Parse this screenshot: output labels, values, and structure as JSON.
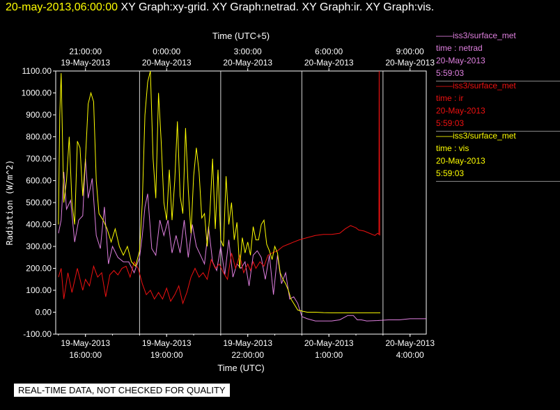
{
  "header": {
    "timestamp": "20-may-2013,06:00:00",
    "graphs": "XY Graph:xy-grid.  XY Graph:netrad.  XY Graph:ir.  XY Graph:vis."
  },
  "legend": [
    {
      "title": "——iss3/surface_met",
      "var": "time : netrad",
      "date": "20-May-2013",
      "time": "5:59:03",
      "color": "#e080e0"
    },
    {
      "title": "——iss3/surface_met",
      "var": "time : ir",
      "date": "20-May-2013",
      "time": "5:59:03",
      "color": "#ee1111"
    },
    {
      "title": "——iss3/surface_met",
      "var": "time : vis",
      "date": "20-May-2013",
      "time": "5:59:03",
      "color": "#ffff00"
    }
  ],
  "disclaimer": "REAL-TIME DATA, NOT CHECKED FOR QUALITY",
  "chart_data": {
    "type": "line",
    "ylabel": "Radiation  (W/m^2)",
    "ylim": [
      -100,
      1100
    ],
    "yticks": [
      "1100.00",
      "1000.00",
      "900.00",
      "800.00",
      "700.00",
      "600.00",
      "500.00",
      "400.00",
      "300.00",
      "200.00",
      "100.00",
      "0.00",
      "-100.00"
    ],
    "ytick_values": [
      1100,
      1000,
      900,
      800,
      700,
      600,
      500,
      400,
      300,
      200,
      100,
      0,
      -100
    ],
    "xlabel_bottom": "Time (UTC)",
    "xlabel_top": "Time (UTC+5)",
    "xlim_hours": [
      14.9,
      28.6
    ],
    "bottom_ticks": [
      {
        "hour": 16,
        "date": "19-May-2013",
        "time": "16:00:00"
      },
      {
        "hour": 19,
        "date": "19-May-2013",
        "time": "19:00:00"
      },
      {
        "hour": 22,
        "date": "19-May-2013",
        "time": "22:00:00"
      },
      {
        "hour": 25,
        "date": "20-May-2013",
        "time": "1:00:00"
      },
      {
        "hour": 28,
        "date": "20-May-2013",
        "time": "4:00:00"
      }
    ],
    "top_ticks": [
      {
        "hour": 16,
        "time": "21:00:00",
        "date": "19-May-2013"
      },
      {
        "hour": 19,
        "time": "0:00:00",
        "date": "20-May-2013"
      },
      {
        "hour": 22,
        "time": "3:00:00",
        "date": "20-May-2013"
      },
      {
        "hour": 25,
        "time": "6:00:00",
        "date": "20-May-2013"
      },
      {
        "hour": 28,
        "time": "9:00:00",
        "date": "20-May-2013"
      }
    ],
    "vlines_hours": [
      18.0,
      21.0,
      24.0,
      27.0
    ],
    "series": [
      {
        "name": "netrad",
        "color": "#e080e0",
        "x": [
          15.0,
          15.1,
          15.2,
          15.3,
          15.45,
          15.6,
          15.75,
          15.9,
          16.0,
          16.1,
          16.25,
          16.4,
          16.55,
          16.7,
          16.85,
          17.0,
          17.2,
          17.4,
          17.6,
          17.8,
          18.0,
          18.1,
          18.2,
          18.3,
          18.45,
          18.6,
          18.75,
          18.9,
          19.05,
          19.2,
          19.35,
          19.5,
          19.65,
          19.8,
          19.95,
          20.1,
          20.25,
          20.4,
          20.55,
          20.7,
          20.85,
          21.0,
          21.15,
          21.3,
          21.45,
          21.6,
          21.75,
          21.9,
          22.05,
          22.2,
          22.35,
          22.5,
          22.65,
          22.8,
          22.95,
          23.1,
          23.25,
          23.4,
          23.55,
          23.7,
          23.85,
          24.0,
          24.2,
          24.5,
          24.8,
          25.1,
          25.4,
          25.7,
          25.9,
          26.05,
          26.2,
          26.4,
          26.8,
          27.2,
          27.6,
          28.0,
          28.4,
          28.6
        ],
        "y": [
          360,
          420,
          640,
          470,
          510,
          320,
          420,
          440,
          700,
          520,
          610,
          350,
          290,
          480,
          220,
          300,
          250,
          230,
          230,
          180,
          250,
          350,
          480,
          540,
          290,
          260,
          420,
          350,
          420,
          270,
          350,
          270,
          420,
          250,
          400,
          300,
          260,
          220,
          390,
          230,
          190,
          300,
          170,
          330,
          160,
          220,
          200,
          230,
          120,
          260,
          280,
          250,
          150,
          260,
          80,
          260,
          130,
          180,
          60,
          70,
          40,
          -20,
          -30,
          -40,
          -40,
          -40,
          -35,
          -15,
          -15,
          -35,
          -35,
          -40,
          -38,
          -35,
          -35,
          -30,
          -30,
          -30
        ]
      },
      {
        "name": "ir",
        "color": "#ee1111",
        "x": [
          15.0,
          15.1,
          15.2,
          15.35,
          15.5,
          15.7,
          15.9,
          16.0,
          16.15,
          16.3,
          16.45,
          16.6,
          16.75,
          16.9,
          17.05,
          17.2,
          17.35,
          17.5,
          17.65,
          17.8,
          17.95,
          18.1,
          18.25,
          18.4,
          18.55,
          18.7,
          18.85,
          19.0,
          19.15,
          19.3,
          19.45,
          19.6,
          19.75,
          19.9,
          20.05,
          20.2,
          20.35,
          20.5,
          20.65,
          20.8,
          20.95,
          21.1,
          21.25,
          21.4,
          21.55,
          21.7,
          21.85,
          22.0,
          22.1,
          22.2,
          22.3,
          22.45,
          22.6,
          22.75,
          22.9,
          23.1,
          23.3,
          23.5,
          23.7,
          23.9,
          24.2,
          24.5,
          24.8,
          25.1,
          25.4,
          25.6,
          25.8,
          26.0,
          26.1,
          26.3,
          26.5,
          26.7,
          26.8,
          26.85,
          26.86,
          26.88
        ],
        "y": [
          160,
          200,
          60,
          180,
          90,
          200,
          100,
          150,
          120,
          210,
          160,
          180,
          70,
          170,
          190,
          170,
          200,
          210,
          160,
          230,
          200,
          130,
          80,
          100,
          60,
          90,
          60,
          110,
          50,
          80,
          120,
          40,
          90,
          160,
          200,
          160,
          180,
          150,
          240,
          200,
          220,
          180,
          150,
          270,
          200,
          260,
          180,
          220,
          190,
          230,
          200,
          230,
          210,
          260,
          270,
          280,
          300,
          310,
          320,
          330,
          340,
          350,
          355,
          355,
          360,
          380,
          395,
          385,
          375,
          370,
          360,
          350,
          360,
          355,
          1100,
          350
        ]
      },
      {
        "name": "vis",
        "color": "#ffff00",
        "x": [
          15.0,
          15.05,
          15.1,
          15.2,
          15.3,
          15.4,
          15.5,
          15.6,
          15.7,
          15.8,
          15.9,
          16.0,
          16.1,
          16.2,
          16.3,
          16.4,
          16.5,
          16.65,
          16.8,
          16.95,
          17.1,
          17.25,
          17.4,
          17.55,
          17.7,
          17.85,
          18.0,
          18.1,
          18.2,
          18.3,
          18.4,
          18.5,
          18.6,
          18.7,
          18.8,
          18.9,
          19.0,
          19.1,
          19.2,
          19.3,
          19.4,
          19.5,
          19.6,
          19.7,
          19.8,
          19.9,
          20.0,
          20.1,
          20.2,
          20.3,
          20.4,
          20.5,
          20.6,
          20.7,
          20.8,
          20.9,
          21.0,
          21.1,
          21.2,
          21.3,
          21.4,
          21.5,
          21.6,
          21.7,
          21.8,
          21.9,
          22.0,
          22.1,
          22.2,
          22.3,
          22.4,
          22.5,
          22.6,
          22.7,
          22.8,
          22.9,
          23.0,
          23.1,
          23.2,
          23.3,
          23.4,
          23.5,
          23.6,
          23.7,
          23.85,
          24.0,
          24.2,
          24.5,
          24.8,
          25.1,
          25.4,
          25.7,
          26.0,
          26.3,
          26.6,
          26.9
        ],
        "y": [
          400,
          900,
          1090,
          500,
          600,
          800,
          500,
          400,
          780,
          750,
          530,
          700,
          950,
          1000,
          960,
          600,
          450,
          420,
          380,
          320,
          380,
          300,
          260,
          300,
          230,
          210,
          280,
          500,
          900,
          1050,
          1100,
          700,
          520,
          1000,
          780,
          500,
          420,
          650,
          420,
          600,
          870,
          530,
          450,
          840,
          560,
          360,
          620,
          750,
          640,
          430,
          450,
          300,
          450,
          700,
          380,
          650,
          330,
          300,
          620,
          400,
          500,
          330,
          410,
          200,
          340,
          270,
          320,
          260,
          390,
          330,
          330,
          400,
          420,
          310,
          280,
          240,
          300,
          270,
          180,
          150,
          130,
          100,
          60,
          40,
          10,
          5,
          0,
          0,
          -2,
          -3,
          -3,
          -3,
          -3,
          -3,
          -3,
          -3
        ]
      }
    ]
  }
}
